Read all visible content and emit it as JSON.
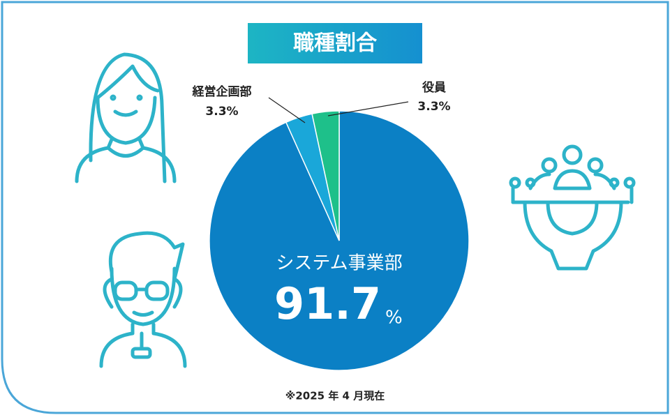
{
  "chart_data": {
    "type": "pie",
    "title": "職種割合",
    "categories": [
      "システム事業部",
      "経営企画部",
      "役員"
    ],
    "values": [
      91.7,
      3.3,
      3.3
    ],
    "value_labels": [
      "91.7",
      "3.3%",
      "3.3%"
    ],
    "unit_label": "%",
    "colors": [
      "#0b80c5",
      "#1aa7d9",
      "#1ec08a"
    ],
    "note": "※2025 年 4 月現在"
  }
}
